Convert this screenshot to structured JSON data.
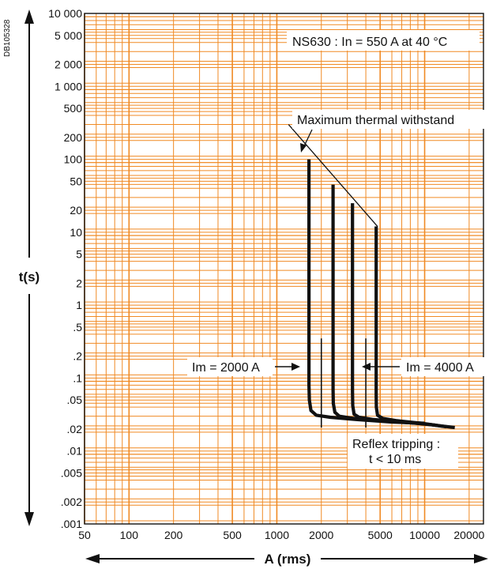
{
  "doc_id": "DB105328",
  "chart_data": {
    "type": "line",
    "title": "",
    "xlabel": "A (rms)",
    "ylabel": "t(s)",
    "x_scale": "log",
    "y_scale": "log",
    "xlim": [
      50,
      25000
    ],
    "ylim": [
      0.001,
      10000
    ],
    "grid": true,
    "grid_color": "#f08a24",
    "curve_color": "#111111",
    "x_ticks": [
      {
        "v": 50,
        "label": "50"
      },
      {
        "v": 100,
        "label": "100"
      },
      {
        "v": 200,
        "label": "200"
      },
      {
        "v": 500,
        "label": "500"
      },
      {
        "v": 1000,
        "label": "1000"
      },
      {
        "v": 2000,
        "label": "2000"
      },
      {
        "v": 5000,
        "label": "5000"
      },
      {
        "v": 10000,
        "label": "10000"
      },
      {
        "v": 20000,
        "label": "20000"
      }
    ],
    "y_ticks": [
      {
        "v": 10000,
        "label": "10 000"
      },
      {
        "v": 5000,
        "label": "5 000"
      },
      {
        "v": 2000,
        "label": "2 000"
      },
      {
        "v": 1000,
        "label": "1 000"
      },
      {
        "v": 500,
        "label": "500"
      },
      {
        "v": 200,
        "label": "200"
      },
      {
        "v": 100,
        "label": "100"
      },
      {
        "v": 50,
        "label": "50"
      },
      {
        "v": 20,
        "label": "20"
      },
      {
        "v": 10,
        "label": "10"
      },
      {
        "v": 5,
        "label": "5"
      },
      {
        "v": 2,
        "label": "2"
      },
      {
        "v": 1,
        "label": "1"
      },
      {
        "v": 0.5,
        "label": ".5"
      },
      {
        "v": 0.2,
        "label": ".2"
      },
      {
        "v": 0.1,
        "label": ".1"
      },
      {
        "v": 0.05,
        "label": ".05"
      },
      {
        "v": 0.02,
        "label": ".02"
      },
      {
        "v": 0.01,
        "label": ".01"
      },
      {
        "v": 0.005,
        "label": ".005"
      },
      {
        "v": 0.002,
        "label": ".002"
      },
      {
        "v": 0.001,
        "label": ".001"
      }
    ],
    "series": [
      {
        "x": [
          1650,
          1650,
          1660,
          1700,
          1850,
          2300,
          3500,
          6000,
          10000
        ],
        "y": [
          100,
          0.08,
          0.05,
          0.036,
          0.031,
          0.029,
          0.027,
          0.025,
          0.024
        ]
      },
      {
        "x": [
          2400,
          2400,
          2410,
          2470,
          2650,
          3300,
          5000,
          9000,
          12000
        ],
        "y": [
          45,
          0.07,
          0.045,
          0.034,
          0.03,
          0.028,
          0.026,
          0.024,
          0.0225
        ]
      },
      {
        "x": [
          3250,
          3250,
          3260,
          3330,
          3600,
          4500,
          7000,
          11000,
          14000
        ],
        "y": [
          25,
          0.065,
          0.042,
          0.032,
          0.029,
          0.027,
          0.025,
          0.023,
          0.0215
        ]
      },
      {
        "x": [
          4700,
          4700,
          4710,
          4800,
          5200,
          6500,
          9500,
          13000,
          16000
        ],
        "y": [
          12,
          0.06,
          0.04,
          0.031,
          0.028,
          0.026,
          0.024,
          0.022,
          0.021
        ]
      }
    ],
    "thermal_withstand": {
      "x": [
        1200,
        4800
      ],
      "y": [
        300,
        12
      ]
    },
    "im_markers": [
      {
        "x": 2000,
        "y_top": 0.35,
        "y_bottom": 0.021
      },
      {
        "x": 4000,
        "y_top": 0.35,
        "y_bottom": 0.021
      }
    ],
    "annotations": {
      "rating": "NS630 : In = 550 A at 40 °C",
      "thermal": "Maximum thermal withstand",
      "im_low": "Im = 2000 A",
      "im_high": "Im = 4000 A",
      "reflex_1": "Reflex tripping :",
      "reflex_2": "t < 10 ms"
    }
  }
}
